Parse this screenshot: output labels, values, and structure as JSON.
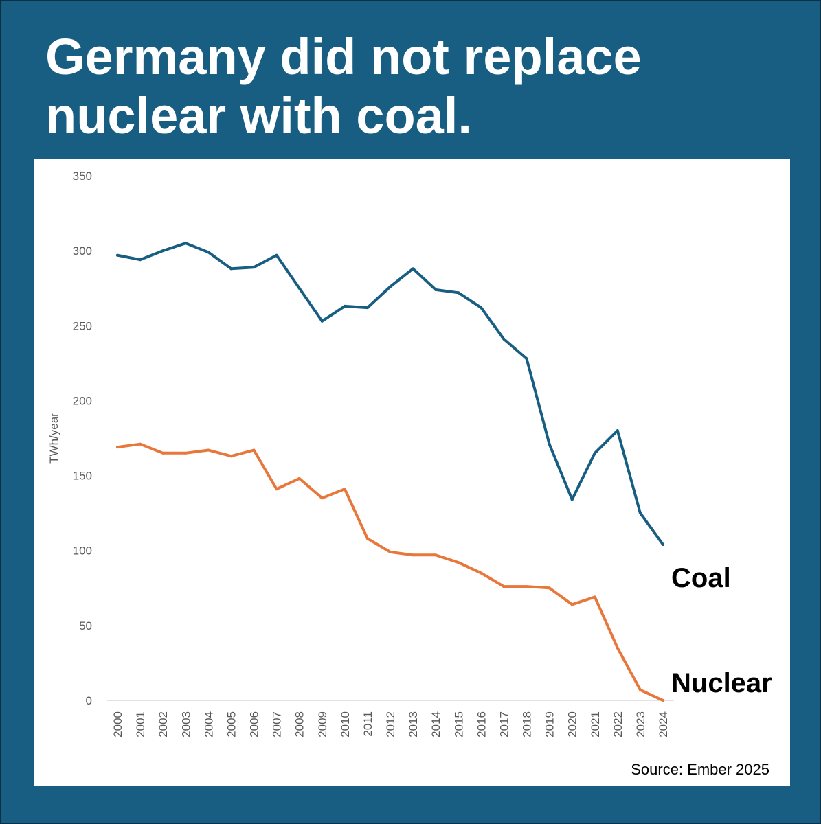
{
  "title": "Germany did not replace\nnuclear with coal.",
  "source": "Source: Ember 2025",
  "colors": {
    "background": "#175e82",
    "panel": "#ffffff",
    "coal": "#175e82",
    "nuclear": "#e8773c",
    "axis": "#d9d9d9",
    "tick_text": "#595959"
  },
  "chart_data": {
    "type": "line",
    "title": "Germany did not replace nuclear with coal.",
    "xlabel": "",
    "ylabel": "TWh/year",
    "ylim": [
      0,
      350
    ],
    "yticks": [
      0,
      50,
      100,
      150,
      200,
      250,
      300,
      350
    ],
    "grid": false,
    "legend": "direct labels at line ends (right)",
    "x": [
      "2000",
      "2001",
      "2002",
      "2003",
      "2004",
      "2005",
      "2006",
      "2007",
      "2008",
      "2009",
      "2010",
      "2011",
      "2012",
      "2013",
      "2014",
      "2015",
      "2016",
      "2017",
      "2018",
      "2019",
      "2020",
      "2021",
      "2022",
      "2023",
      "2024"
    ],
    "series": [
      {
        "name": "Coal",
        "color": "#175e82",
        "values": [
          297,
          294,
          300,
          305,
          299,
          288,
          289,
          297,
          275,
          253,
          263,
          262,
          276,
          288,
          274,
          272,
          262,
          241,
          228,
          171,
          134,
          165,
          180,
          125,
          104
        ]
      },
      {
        "name": "Nuclear",
        "color": "#e8773c",
        "values": [
          169,
          171,
          165,
          165,
          167,
          163,
          167,
          141,
          148,
          135,
          141,
          108,
          99,
          97,
          97,
          92,
          85,
          76,
          76,
          75,
          64,
          69,
          35,
          7,
          0
        ]
      }
    ]
  }
}
